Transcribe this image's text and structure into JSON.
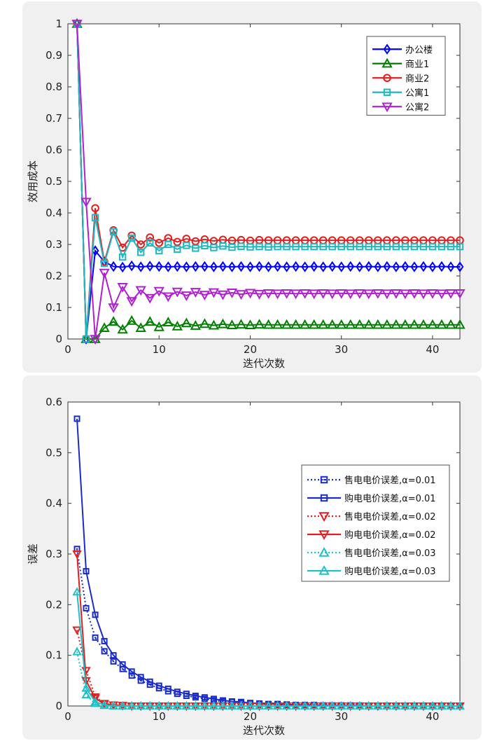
{
  "chart_data": [
    {
      "type": "line",
      "xlabel": "迭代次数",
      "ylabel": "效用成本",
      "xlim": [
        0,
        43
      ],
      "ylim": [
        0,
        1
      ],
      "xticks": [
        "0",
        "10",
        "20",
        "30",
        "40"
      ],
      "yticks": [
        "0",
        "0.1",
        "0.2",
        "0.3",
        "0.4",
        "0.5",
        "0.6",
        "0.7",
        "0.8",
        "0.9",
        "1"
      ],
      "legend_position": "top-right",
      "series": [
        {
          "name": "办公楼",
          "color": "#0000ff",
          "marker": "diamond",
          "style": "solid",
          "x_start": 1,
          "values": [
            1.0,
            0.0,
            0.28,
            0.245,
            0.23,
            0.228,
            0.232,
            0.229,
            0.231,
            0.23,
            0.229,
            0.23,
            0.229,
            0.23,
            0.23,
            0.229,
            0.23,
            0.229,
            0.23,
            0.229,
            0.23,
            0.229,
            0.23,
            0.229,
            0.23,
            0.229,
            0.23,
            0.229,
            0.23,
            0.229,
            0.23,
            0.229,
            0.23,
            0.229,
            0.23,
            0.229,
            0.23,
            0.229,
            0.23,
            0.229,
            0.23,
            0.229,
            0.229
          ]
        },
        {
          "name": "商业1",
          "color": "#008000",
          "marker": "triangle-up",
          "style": "solid",
          "x_start": 1,
          "values": [
            1.0,
            0.0,
            0.0,
            0.035,
            0.055,
            0.03,
            0.058,
            0.035,
            0.055,
            0.038,
            0.053,
            0.04,
            0.05,
            0.042,
            0.048,
            0.043,
            0.047,
            0.044,
            0.046,
            0.044,
            0.046,
            0.045,
            0.045,
            0.045,
            0.045,
            0.045,
            0.045,
            0.045,
            0.045,
            0.045,
            0.045,
            0.045,
            0.045,
            0.045,
            0.045,
            0.045,
            0.045,
            0.045,
            0.045,
            0.045,
            0.045,
            0.045,
            0.045
          ]
        },
        {
          "name": "商业2",
          "color": "#e02020",
          "marker": "circle",
          "style": "solid",
          "x_start": 1,
          "values": [
            1.0,
            0.0,
            0.415,
            0.245,
            0.345,
            0.29,
            0.328,
            0.3,
            0.322,
            0.305,
            0.32,
            0.308,
            0.318,
            0.31,
            0.316,
            0.311,
            0.315,
            0.312,
            0.314,
            0.312,
            0.314,
            0.313,
            0.313,
            0.313,
            0.313,
            0.313,
            0.313,
            0.313,
            0.313,
            0.313,
            0.313,
            0.313,
            0.313,
            0.313,
            0.313,
            0.313,
            0.313,
            0.313,
            0.313,
            0.313,
            0.313,
            0.313,
            0.313
          ]
        },
        {
          "name": "公寓1",
          "color": "#20b8c0",
          "marker": "square",
          "style": "solid",
          "x_start": 1,
          "values": [
            1.0,
            0.0,
            0.385,
            0.24,
            0.34,
            0.26,
            0.32,
            0.275,
            0.305,
            0.28,
            0.3,
            0.285,
            0.297,
            0.288,
            0.296,
            0.29,
            0.295,
            0.291,
            0.294,
            0.292,
            0.293,
            0.292,
            0.293,
            0.293,
            0.293,
            0.293,
            0.293,
            0.293,
            0.293,
            0.293,
            0.293,
            0.293,
            0.293,
            0.293,
            0.293,
            0.293,
            0.293,
            0.293,
            0.293,
            0.293,
            0.293,
            0.293,
            0.293
          ]
        },
        {
          "name": "公寓2",
          "color": "#b020d0",
          "marker": "triangle-down",
          "style": "solid",
          "x_start": 1,
          "values": [
            1.0,
            0.435,
            0.0,
            0.21,
            0.1,
            0.165,
            0.12,
            0.155,
            0.13,
            0.152,
            0.135,
            0.15,
            0.138,
            0.149,
            0.14,
            0.148,
            0.141,
            0.147,
            0.142,
            0.146,
            0.143,
            0.145,
            0.144,
            0.145,
            0.144,
            0.145,
            0.144,
            0.145,
            0.144,
            0.145,
            0.144,
            0.145,
            0.144,
            0.145,
            0.144,
            0.145,
            0.144,
            0.145,
            0.144,
            0.145,
            0.144,
            0.145,
            0.145
          ]
        }
      ]
    },
    {
      "type": "line",
      "xlabel": "迭代次数",
      "ylabel": "误差",
      "xlim": [
        0,
        43
      ],
      "ylim": [
        0,
        0.6
      ],
      "xticks": [
        "0",
        "10",
        "20",
        "30",
        "40"
      ],
      "yticks": [
        "0",
        "0.1",
        "0.2",
        "0.3",
        "0.4",
        "0.5",
        "0.6"
      ],
      "legend_position": "right",
      "series": [
        {
          "name": "售电电价误差,α=0.01",
          "color": "#1a2cc8",
          "marker": "square-dot",
          "style": "dotted",
          "x_start": 1,
          "values": [
            0.31,
            0.193,
            0.135,
            0.108,
            0.088,
            0.073,
            0.06,
            0.05,
            0.042,
            0.035,
            0.029,
            0.024,
            0.02,
            0.017,
            0.014,
            0.011,
            0.009,
            0.008,
            0.006,
            0.005,
            0.004,
            0.003,
            0.003,
            0.002,
            0.002,
            0.001,
            0.001,
            0.001,
            0.001,
            0.001,
            0.001,
            0.0,
            0.0,
            0.0,
            0.0,
            0.0,
            0.0,
            0.0,
            0.0,
            0.0,
            0.0,
            0.0,
            0.0
          ]
        },
        {
          "name": "购电电价误差,α=0.01",
          "color": "#1a2cc8",
          "marker": "square",
          "style": "solid",
          "x_start": 1,
          "values": [
            0.567,
            0.266,
            0.18,
            0.128,
            0.1,
            0.082,
            0.068,
            0.057,
            0.048,
            0.04,
            0.034,
            0.028,
            0.024,
            0.02,
            0.017,
            0.014,
            0.011,
            0.009,
            0.008,
            0.006,
            0.005,
            0.004,
            0.004,
            0.003,
            0.002,
            0.002,
            0.002,
            0.001,
            0.001,
            0.001,
            0.001,
            0.001,
            0.0,
            0.0,
            0.0,
            0.0,
            0.0,
            0.0,
            0.0,
            0.0,
            0.0,
            0.0,
            0.0
          ]
        },
        {
          "name": "售电电价误差,α=0.02",
          "color": "#e02020",
          "marker": "triangle-down",
          "style": "dotted",
          "x_start": 1,
          "values": [
            0.15,
            0.07,
            0.018,
            0.005,
            0.002,
            0.001,
            0.0,
            0.0,
            0.0,
            0.0,
            0.0,
            0.0,
            0.0,
            0.0,
            0.0,
            0.0,
            0.0,
            0.0,
            0.0,
            0.0,
            0.0,
            0.0,
            0.0,
            0.0,
            0.0,
            0.0,
            0.0,
            0.0,
            0.0,
            0.0,
            0.0,
            0.0,
            0.0,
            0.0,
            0.0,
            0.0,
            0.0,
            0.0,
            0.0,
            0.0,
            0.0,
            0.0,
            0.0
          ]
        },
        {
          "name": "购电电价误差,α=0.02",
          "color": "#e02020",
          "marker": "triangle-down",
          "style": "solid",
          "x_start": 1,
          "values": [
            0.3,
            0.05,
            0.015,
            0.004,
            0.002,
            0.001,
            0.0,
            0.0,
            0.0,
            0.0,
            0.0,
            0.0,
            0.0,
            0.0,
            0.0,
            0.0,
            0.0,
            0.0,
            0.0,
            0.0,
            0.0,
            0.0,
            0.0,
            0.0,
            0.0,
            0.0,
            0.0,
            0.0,
            0.0,
            0.0,
            0.0,
            0.0,
            0.0,
            0.0,
            0.0,
            0.0,
            0.0,
            0.0,
            0.0,
            0.0,
            0.0,
            0.0,
            0.0
          ]
        },
        {
          "name": "售电电价误差,α=0.03",
          "color": "#20c0c8",
          "marker": "triangle-up",
          "style": "dotted",
          "x_start": 1,
          "values": [
            0.107,
            0.022,
            0.005,
            0.001,
            0.0,
            0.0,
            0.0,
            0.0,
            0.0,
            0.0,
            0.0,
            0.0,
            0.0,
            0.0,
            0.0,
            0.0,
            0.0,
            0.0,
            0.0,
            0.0,
            0.0,
            0.0,
            0.0,
            0.0,
            0.0,
            0.0,
            0.0,
            0.0,
            0.0,
            0.0,
            0.0,
            0.0,
            0.0,
            0.0,
            0.0,
            0.0,
            0.0,
            0.0,
            0.0,
            0.0,
            0.0,
            0.0,
            0.0
          ]
        },
        {
          "name": "购电电价误差,α=0.03",
          "color": "#20c0c8",
          "marker": "triangle-up",
          "style": "solid",
          "x_start": 1,
          "values": [
            0.225,
            0.035,
            0.008,
            0.002,
            0.0,
            0.0,
            0.0,
            0.0,
            0.0,
            0.0,
            0.0,
            0.0,
            0.0,
            0.0,
            0.0,
            0.0,
            0.0,
            0.0,
            0.0,
            0.0,
            0.0,
            0.0,
            0.0,
            0.0,
            0.0,
            0.0,
            0.0,
            0.0,
            0.0,
            0.0,
            0.0,
            0.0,
            0.0,
            0.0,
            0.0,
            0.0,
            0.0,
            0.0,
            0.0,
            0.0,
            0.0,
            0.0,
            0.0
          ]
        }
      ]
    }
  ]
}
